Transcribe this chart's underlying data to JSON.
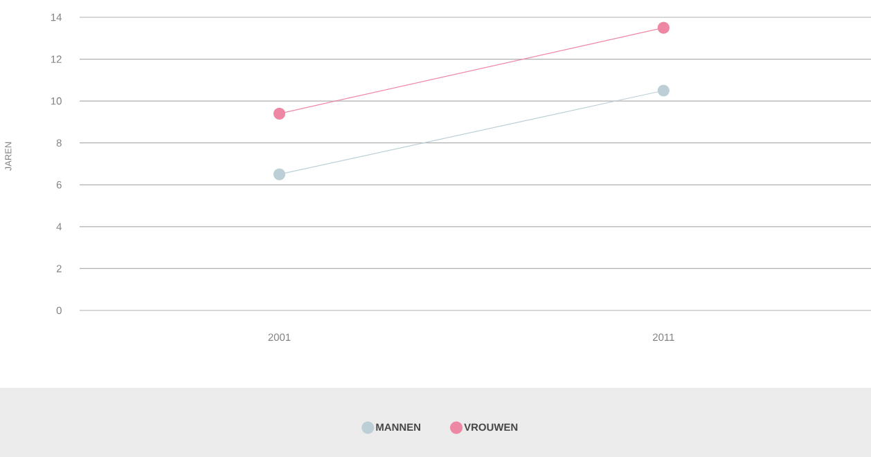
{
  "chart_data": {
    "type": "line",
    "ylabel": "JAREN",
    "categories": [
      "2001",
      "2011"
    ],
    "series": [
      {
        "name": "MANNEN",
        "color": "#bccfd6",
        "values": [
          6.5,
          10.5
        ]
      },
      {
        "name": "VROUWEN",
        "color": "#ee87a4",
        "values": [
          9.4,
          13.5
        ]
      }
    ],
    "ylim": [
      0,
      14
    ],
    "yticks": [
      0,
      2,
      4,
      6,
      8,
      10,
      12,
      14
    ],
    "grid": "y",
    "marker": "circle",
    "line_style": "solid",
    "legend": "bottom"
  }
}
